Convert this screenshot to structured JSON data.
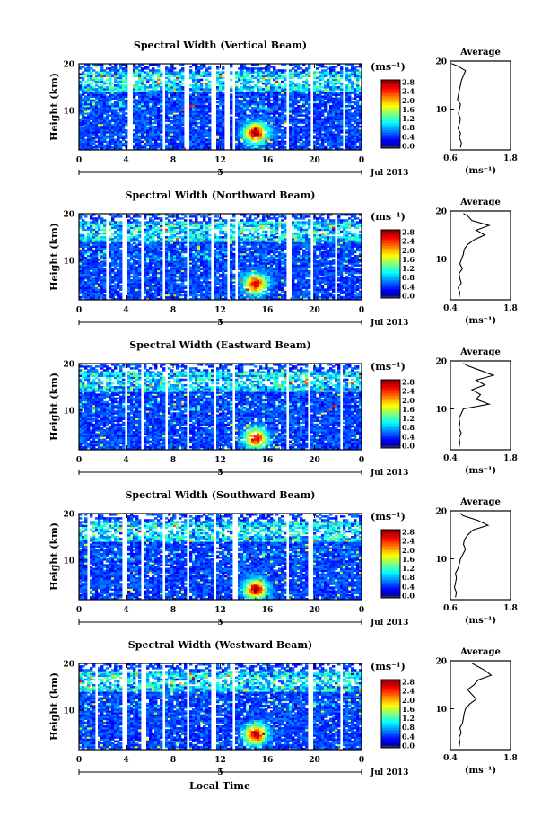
{
  "figure": {
    "x_axis_title": "Local Time",
    "month_label": "Jul 2013",
    "day_label": "5"
  },
  "chart_data": [
    {
      "type": "heatmap",
      "title": "Spectral Width (Vertical Beam)",
      "ylabel": "Height (km)",
      "x_ticks": [
        "0",
        "4",
        "8",
        "12",
        "16",
        "20",
        "0"
      ],
      "xlim": [
        0,
        24
      ],
      "y_ticks": [
        "20",
        "10"
      ],
      "ylim": [
        1.5,
        20
      ],
      "colorbar": {
        "unit": "(ms⁻¹)",
        "ticks": [
          "2.8",
          "2.4",
          "2.0",
          "1.6",
          "1.2",
          "0.8",
          "0.4",
          "0.0"
        ],
        "range": [
          0,
          3.0
        ]
      },
      "gaps": [
        [
          4.1,
          4.5
        ],
        [
          7.0,
          7.3
        ],
        [
          9.0,
          9.3
        ],
        [
          11.3,
          11.6
        ],
        [
          12.4,
          12.7
        ],
        [
          13.0,
          13.3
        ],
        [
          17.6,
          17.9
        ],
        [
          19.6,
          19.9
        ],
        [
          22.4,
          22.6
        ]
      ],
      "hot_spot": {
        "time": 15.0,
        "height": 5.2,
        "value": 2.8
      },
      "average_profile": {
        "title": "Average",
        "x_ticks": [
          "0.6",
          "1.8"
        ],
        "xlim": [
          0.6,
          1.8
        ],
        "y_ticks": [
          "20",
          "10"
        ],
        "xlabel": "(ms⁻¹)",
        "height": [
          2,
          3,
          4,
          5,
          6,
          7,
          8,
          9,
          10,
          11,
          12,
          13,
          14,
          15,
          16,
          17,
          18,
          19,
          19.5
        ],
        "value": [
          0.8,
          0.82,
          0.78,
          0.8,
          0.75,
          0.78,
          0.8,
          0.76,
          0.78,
          0.8,
          0.74,
          0.76,
          0.78,
          0.8,
          0.82,
          0.86,
          0.9,
          0.74,
          0.62
        ]
      }
    },
    {
      "type": "heatmap",
      "title": "Spectral Width (Northward Beam)",
      "ylabel": "Height (km)",
      "x_ticks": [
        "0",
        "4",
        "8",
        "12",
        "16",
        "20",
        "0"
      ],
      "xlim": [
        0,
        24
      ],
      "y_ticks": [
        "20",
        "10"
      ],
      "ylim": [
        1.5,
        20
      ],
      "colorbar": {
        "unit": "(ms⁻¹)",
        "ticks": [
          "2.8",
          "2.4",
          "2.0",
          "1.6",
          "1.2",
          "0.8",
          "0.4",
          "0.0"
        ],
        "range": [
          0,
          3.0
        ]
      },
      "gaps": [
        [
          2.2,
          2.4
        ],
        [
          3.7,
          4.1
        ],
        [
          5.2,
          5.4
        ],
        [
          7.2,
          7.4
        ],
        [
          9.2,
          9.4
        ],
        [
          11.2,
          11.5
        ],
        [
          12.6,
          12.9
        ],
        [
          13.2,
          13.5
        ],
        [
          17.7,
          18.0
        ],
        [
          19.6,
          19.9
        ],
        [
          21.8,
          22.0
        ]
      ],
      "hot_spot": {
        "time": 15.0,
        "height": 5.0,
        "value": 2.7
      },
      "average_profile": {
        "title": "Average",
        "x_ticks": [
          "0.4",
          "1.8"
        ],
        "xlim": [
          0.4,
          1.8
        ],
        "y_ticks": [
          "20",
          "10"
        ],
        "xlabel": "(ms⁻¹)",
        "height": [
          2,
          3,
          4,
          5,
          6,
          7,
          8,
          9,
          10,
          11,
          12,
          13,
          14,
          15,
          16,
          17,
          18,
          19,
          19.5
        ],
        "value": [
          0.6,
          0.62,
          0.58,
          0.65,
          0.62,
          0.6,
          0.68,
          0.62,
          0.66,
          0.7,
          0.72,
          0.8,
          0.95,
          1.2,
          1.0,
          1.3,
          0.9,
          0.8,
          0.7
        ]
      }
    },
    {
      "type": "heatmap",
      "title": "Spectral Width (Eastward Beam)",
      "ylabel": "Height (km)",
      "x_ticks": [
        "0",
        "4",
        "8",
        "12",
        "16",
        "20",
        "0"
      ],
      "xlim": [
        0,
        24
      ],
      "y_ticks": [
        "20",
        "10"
      ],
      "ylim": [
        1.5,
        20
      ],
      "colorbar": {
        "unit": "(ms⁻¹)",
        "ticks": [
          "2.8",
          "2.4",
          "2.0",
          "1.6",
          "1.2",
          "0.8",
          "0.4",
          "0.0"
        ],
        "range": [
          0,
          3.0
        ]
      },
      "gaps": [
        [
          3.8,
          4.1
        ],
        [
          5.2,
          5.5
        ],
        [
          7.4,
          7.6
        ],
        [
          9.2,
          9.4
        ],
        [
          11.4,
          11.7
        ],
        [
          13.0,
          13.2
        ],
        [
          17.6,
          17.9
        ],
        [
          19.5,
          19.7
        ],
        [
          22.2,
          22.5
        ]
      ],
      "hot_spot": {
        "time": 15.0,
        "height": 4.0,
        "value": 2.6
      },
      "average_profile": {
        "title": "Average",
        "x_ticks": [
          "0.4",
          "1.8"
        ],
        "xlim": [
          0.4,
          1.8
        ],
        "y_ticks": [
          "20",
          "10"
        ],
        "xlabel": "(ms⁻¹)",
        "height": [
          2,
          3,
          4,
          5,
          6,
          7,
          8,
          9,
          10,
          11,
          12,
          13,
          14,
          15,
          16,
          17,
          18,
          19,
          19.5
        ],
        "value": [
          0.6,
          0.62,
          0.6,
          0.65,
          0.6,
          0.62,
          0.6,
          0.65,
          0.7,
          1.3,
          1.0,
          1.1,
          0.9,
          1.2,
          1.0,
          1.4,
          1.1,
          0.8,
          0.7
        ]
      }
    },
    {
      "type": "heatmap",
      "title": "Spectral Width (Southward Beam)",
      "ylabel": "Height (km)",
      "x_ticks": [
        "0",
        "4",
        "8",
        "12",
        "16",
        "20",
        "0"
      ],
      "xlim": [
        0,
        24
      ],
      "y_ticks": [
        "20",
        "10"
      ],
      "ylim": [
        1.5,
        20
      ],
      "colorbar": {
        "unit": "(ms⁻¹)",
        "ticks": [
          "2.8",
          "2.4",
          "2.0",
          "1.6",
          "1.2",
          "0.8",
          "0.4",
          "0.0"
        ],
        "range": [
          0,
          3.0
        ]
      },
      "gaps": [
        [
          0.6,
          0.8
        ],
        [
          3.7,
          4.0
        ],
        [
          5.3,
          5.5
        ],
        [
          7.2,
          7.4
        ],
        [
          9.1,
          9.4
        ],
        [
          11.4,
          11.7
        ],
        [
          13.1,
          13.4
        ],
        [
          17.6,
          17.9
        ],
        [
          19.5,
          19.8
        ],
        [
          22.3,
          22.5
        ]
      ],
      "hot_spot": {
        "time": 15.0,
        "height": 3.8,
        "value": 2.8
      },
      "average_profile": {
        "title": "Average",
        "x_ticks": [
          "0.6",
          "1.8"
        ],
        "xlim": [
          0.6,
          1.8
        ],
        "y_ticks": [
          "20",
          "10"
        ],
        "xlabel": "(ms⁻¹)",
        "height": [
          2,
          3,
          4,
          5,
          6,
          7,
          8,
          9,
          10,
          11,
          12,
          13,
          14,
          15,
          16,
          17,
          18,
          19,
          19.5
        ],
        "value": [
          0.7,
          0.72,
          0.68,
          0.7,
          0.72,
          0.7,
          0.75,
          0.78,
          0.8,
          0.85,
          0.9,
          0.86,
          0.88,
          0.95,
          1.05,
          1.35,
          1.15,
          0.85,
          0.8
        ]
      }
    },
    {
      "type": "heatmap",
      "title": "Spectral Width (Westward Beam)",
      "ylabel": "Height (km)",
      "x_ticks": [
        "0",
        "4",
        "8",
        "12",
        "16",
        "20",
        "0"
      ],
      "xlim": [
        0,
        24
      ],
      "y_ticks": [
        "20",
        "10"
      ],
      "ylim": [
        1.5,
        20
      ],
      "colorbar": {
        "unit": "(ms⁻¹)",
        "ticks": [
          "2.8",
          "2.4",
          "2.0",
          "1.6",
          "1.2",
          "0.8",
          "0.4",
          "0.0"
        ],
        "range": [
          0,
          3.0
        ]
      },
      "gaps": [
        [
          1.3,
          1.5
        ],
        [
          3.7,
          4.0
        ],
        [
          5.3,
          5.6
        ],
        [
          7.2,
          7.4
        ],
        [
          9.2,
          9.4
        ],
        [
          11.3,
          11.6
        ],
        [
          13.0,
          13.3
        ],
        [
          17.5,
          17.7
        ],
        [
          19.5,
          19.8
        ],
        [
          22.1,
          22.4
        ]
      ],
      "hot_spot": {
        "time": 15.0,
        "height": 4.8,
        "value": 2.8
      },
      "average_profile": {
        "title": "Average",
        "x_ticks": [
          "0.4",
          "1.8"
        ],
        "xlim": [
          0.4,
          1.8
        ],
        "y_ticks": [
          "20",
          "10"
        ],
        "xlabel": "(ms⁻¹)",
        "height": [
          2,
          3,
          4,
          5,
          6,
          7,
          8,
          9,
          10,
          11,
          12,
          13,
          14,
          15,
          16,
          17,
          18,
          19,
          19.5
        ],
        "value": [
          0.6,
          0.62,
          0.6,
          0.65,
          0.62,
          0.68,
          0.7,
          0.72,
          0.75,
          0.85,
          1.0,
          0.9,
          0.8,
          0.95,
          1.05,
          1.35,
          1.2,
          1.0,
          0.9
        ]
      }
    }
  ]
}
